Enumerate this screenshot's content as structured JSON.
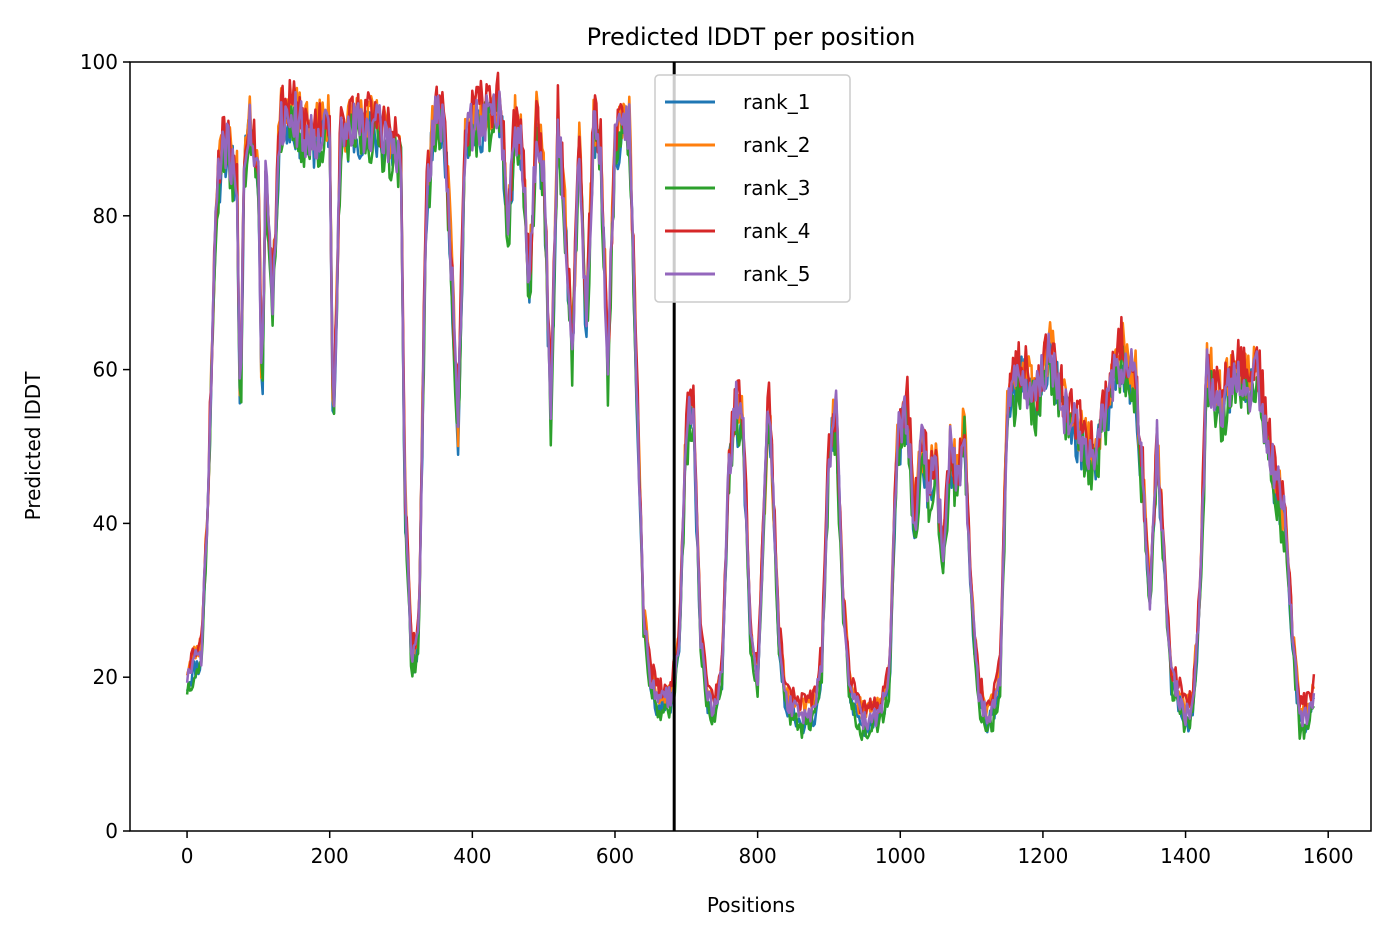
{
  "chart_data": {
    "type": "line",
    "title": "Predicted lDDT per position",
    "xlabel": "Positions",
    "ylabel": "Predicted lDDT",
    "xlim": [
      -80,
      1660
    ],
    "ylim": [
      0,
      100
    ],
    "xticks": [
      0,
      200,
      400,
      600,
      800,
      1000,
      1200,
      1400,
      1600
    ],
    "yticks": [
      0,
      20,
      40,
      60,
      80,
      100
    ],
    "grid": false,
    "legend_position": "upper center",
    "vline": {
      "x": 683,
      "color": "#000000"
    },
    "base_profile": [
      [
        0,
        20
      ],
      [
        10,
        22
      ],
      [
        20,
        23
      ],
      [
        30,
        45
      ],
      [
        40,
        80
      ],
      [
        50,
        90
      ],
      [
        60,
        88
      ],
      [
        70,
        85
      ],
      [
        75,
        52
      ],
      [
        80,
        88
      ],
      [
        90,
        92
      ],
      [
        100,
        85
      ],
      [
        105,
        55
      ],
      [
        110,
        85
      ],
      [
        120,
        70
      ],
      [
        130,
        92
      ],
      [
        150,
        93
      ],
      [
        170,
        90
      ],
      [
        200,
        92
      ],
      [
        205,
        50
      ],
      [
        215,
        90
      ],
      [
        240,
        92
      ],
      [
        270,
        91
      ],
      [
        300,
        88
      ],
      [
        305,
        45
      ],
      [
        315,
        22
      ],
      [
        325,
        25
      ],
      [
        335,
        80
      ],
      [
        345,
        92
      ],
      [
        360,
        93
      ],
      [
        370,
        75
      ],
      [
        380,
        52
      ],
      [
        390,
        90
      ],
      [
        400,
        92
      ],
      [
        420,
        93
      ],
      [
        440,
        94
      ],
      [
        450,
        78
      ],
      [
        460,
        92
      ],
      [
        470,
        88
      ],
      [
        480,
        70
      ],
      [
        490,
        92
      ],
      [
        500,
        85
      ],
      [
        510,
        55
      ],
      [
        520,
        92
      ],
      [
        530,
        80
      ],
      [
        540,
        62
      ],
      [
        550,
        90
      ],
      [
        560,
        65
      ],
      [
        570,
        92
      ],
      [
        580,
        88
      ],
      [
        590,
        60
      ],
      [
        600,
        90
      ],
      [
        620,
        92
      ],
      [
        630,
        60
      ],
      [
        640,
        28
      ],
      [
        650,
        20
      ],
      [
        660,
        17
      ],
      [
        670,
        17
      ],
      [
        680,
        18
      ],
      [
        690,
        25
      ],
      [
        700,
        52
      ],
      [
        710,
        55
      ],
      [
        720,
        25
      ],
      [
        730,
        17
      ],
      [
        740,
        16
      ],
      [
        750,
        20
      ],
      [
        760,
        48
      ],
      [
        770,
        55
      ],
      [
        780,
        52
      ],
      [
        790,
        25
      ],
      [
        800,
        20
      ],
      [
        815,
        55
      ],
      [
        820,
        48
      ],
      [
        830,
        25
      ],
      [
        840,
        17
      ],
      [
        860,
        15
      ],
      [
        880,
        16
      ],
      [
        890,
        22
      ],
      [
        900,
        50
      ],
      [
        910,
        54
      ],
      [
        920,
        30
      ],
      [
        930,
        18
      ],
      [
        950,
        14
      ],
      [
        970,
        15
      ],
      [
        985,
        20
      ],
      [
        995,
        50
      ],
      [
        1010,
        55
      ],
      [
        1020,
        40
      ],
      [
        1030,
        50
      ],
      [
        1040,
        45
      ],
      [
        1050,
        48
      ],
      [
        1060,
        35
      ],
      [
        1070,
        50
      ],
      [
        1080,
        45
      ],
      [
        1090,
        52
      ],
      [
        1100,
        30
      ],
      [
        1110,
        18
      ],
      [
        1120,
        15
      ],
      [
        1130,
        16
      ],
      [
        1140,
        20
      ],
      [
        1150,
        55
      ],
      [
        1170,
        60
      ],
      [
        1190,
        56
      ],
      [
        1210,
        62
      ],
      [
        1230,
        55
      ],
      [
        1250,
        52
      ],
      [
        1270,
        48
      ],
      [
        1290,
        55
      ],
      [
        1310,
        62
      ],
      [
        1330,
        58
      ],
      [
        1340,
        45
      ],
      [
        1350,
        30
      ],
      [
        1360,
        50
      ],
      [
        1370,
        35
      ],
      [
        1380,
        20
      ],
      [
        1400,
        15
      ],
      [
        1410,
        16
      ],
      [
        1420,
        30
      ],
      [
        1430,
        60
      ],
      [
        1450,
        55
      ],
      [
        1470,
        60
      ],
      [
        1490,
        58
      ],
      [
        1500,
        60
      ],
      [
        1520,
        48
      ],
      [
        1540,
        40
      ],
      [
        1550,
        25
      ],
      [
        1560,
        15
      ],
      [
        1570,
        15
      ],
      [
        1580,
        18
      ]
    ],
    "series": [
      {
        "name": "rank_1",
        "color": "#1f77b4",
        "offset": -1.0,
        "seed": 11
      },
      {
        "name": "rank_2",
        "color": "#ff7f0e",
        "offset": 1.0,
        "seed": 23
      },
      {
        "name": "rank_3",
        "color": "#2ca02c",
        "offset": -1.5,
        "seed": 37
      },
      {
        "name": "rank_4",
        "color": "#d62728",
        "offset": 1.5,
        "seed": 53
      },
      {
        "name": "rank_5",
        "color": "#9467bd",
        "offset": 0.0,
        "seed": 71
      }
    ]
  }
}
